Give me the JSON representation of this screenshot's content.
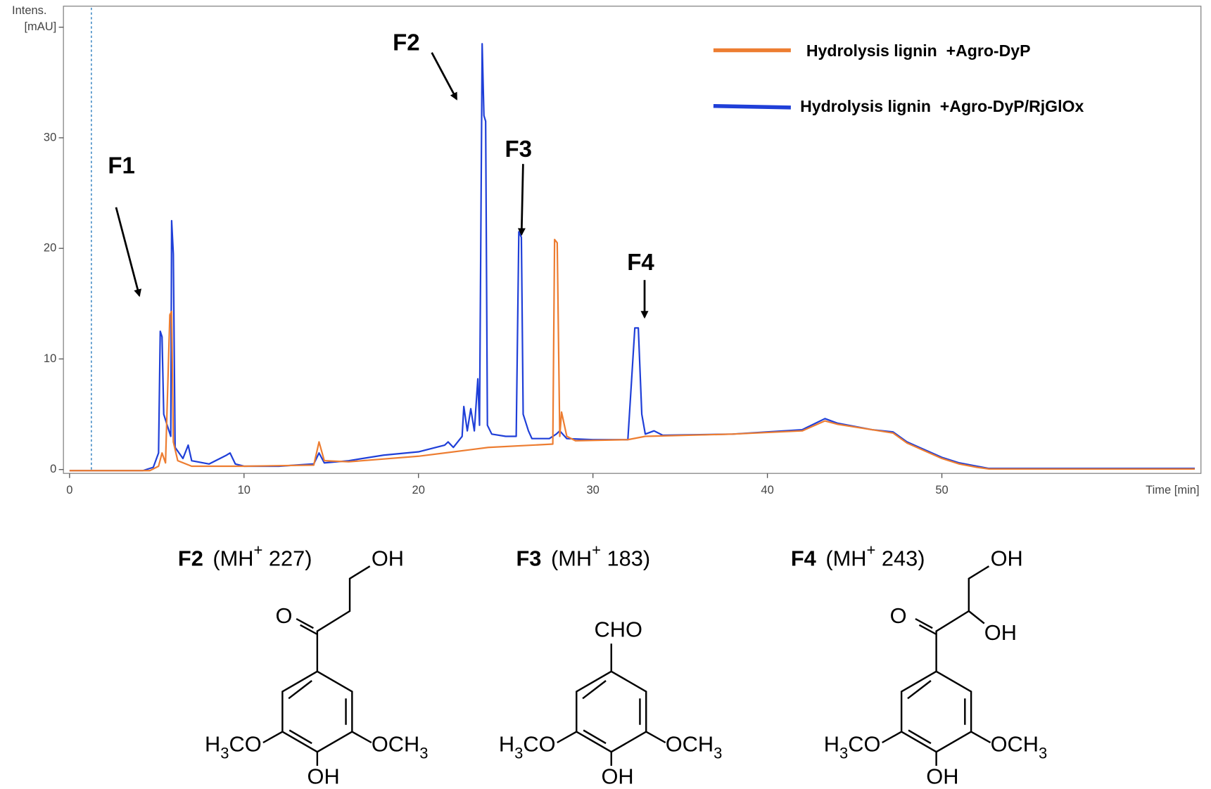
{
  "chart_data": {
    "type": "line",
    "x_label": "Time [min]",
    "y_label": "Intens.",
    "xlim": [
      -0.35,
      64.85
    ],
    "ylim": [
      -0.35,
      41.9
    ],
    "xticks": [
      0,
      10,
      20,
      30,
      40,
      50
    ],
    "yticks": [
      0,
      10,
      20,
      30,
      {
        "value": 40,
        "label": "[mAU]"
      }
    ],
    "vline": {
      "x": 1.25,
      "color": "#4a90c8"
    },
    "legend": "top right",
    "annotations": [
      {
        "text": "F1"
      },
      {
        "text": "F2"
      },
      {
        "text": "F3"
      },
      {
        "text": "F4"
      }
    ],
    "series": [
      {
        "name": "Hydrolysis lignin  +Agro-DyP",
        "color": "#ed7d31",
        "x": [
          0,
          4.6,
          5.1,
          5.3,
          5.5,
          5.75,
          5.85,
          5.95,
          6.2,
          7,
          10,
          14,
          14.3,
          14.6,
          16,
          20,
          23,
          24,
          27.7,
          27.8,
          27.95,
          28.1,
          28.2,
          28.5,
          29,
          32,
          33,
          38,
          42,
          43.3,
          44,
          46,
          47.2,
          48,
          49,
          50,
          51,
          52,
          52.7,
          64.5
        ],
        "values": [
          -0.1,
          -0.1,
          0.3,
          1.5,
          0.6,
          14,
          14.3,
          2.5,
          0.8,
          0.3,
          0.3,
          0.4,
          2.5,
          0.8,
          0.7,
          1.2,
          1.8,
          2,
          2.3,
          20.8,
          20.5,
          3,
          5.2,
          3,
          2.6,
          2.7,
          3,
          3.2,
          3.5,
          4.4,
          4.1,
          3.6,
          3.3,
          2.4,
          1.7,
          1,
          0.5,
          0.2,
          0.05,
          0.05
        ]
      },
      {
        "name": "Hydrolysis lignin  +Agro-DyP/RjGlOx",
        "color": "#1f3fd8",
        "x": [
          0,
          4.2,
          4.8,
          5.1,
          5.2,
          5.3,
          5.4,
          5.6,
          5.8,
          5.85,
          5.95,
          6.05,
          6.5,
          6.8,
          7,
          8,
          9,
          9.2,
          9.5,
          10,
          12,
          14,
          14.3,
          14.6,
          16,
          18,
          20,
          21.5,
          21.7,
          22,
          22.5,
          22.6,
          22.8,
          23,
          23.2,
          23.4,
          23.5,
          23.65,
          23.75,
          23.85,
          23.95,
          24.2,
          25,
          25.6,
          25.75,
          25.9,
          26,
          26.3,
          26.5,
          27.5,
          27.9,
          28.1,
          28.5,
          30,
          32,
          32.4,
          32.6,
          32.8,
          33,
          33.5,
          34,
          38,
          42,
          43.3,
          44,
          46,
          47.2,
          48,
          49,
          50,
          51,
          52,
          52.7,
          64.5
        ],
        "values": [
          -0.1,
          -0.1,
          0.2,
          1.5,
          12.5,
          12,
          5,
          4,
          3,
          22.5,
          19.5,
          2,
          1,
          2.2,
          0.8,
          0.5,
          1.3,
          1.5,
          0.5,
          0.3,
          0.3,
          0.5,
          1.5,
          0.6,
          0.8,
          1.3,
          1.6,
          2.2,
          2.5,
          2,
          3,
          5.7,
          3.5,
          5.5,
          3.5,
          8.2,
          4,
          38.5,
          32,
          31.5,
          4,
          3.2,
          3,
          3,
          21.5,
          21,
          5,
          3.5,
          2.8,
          2.8,
          3.2,
          3.5,
          2.8,
          2.7,
          2.7,
          12.8,
          12.8,
          5,
          3.2,
          3.5,
          3.1,
          3.2,
          3.6,
          4.6,
          4.2,
          3.6,
          3.4,
          2.5,
          1.8,
          1.1,
          0.6,
          0.3,
          0.1,
          0.1
        ]
      }
    ]
  },
  "structures": [
    {
      "name": "F2",
      "ion": "(MH+ 227)",
      "atoms": [
        "OH",
        "O",
        "H3CO",
        "OCH3",
        "OH"
      ]
    },
    {
      "name": "F3",
      "ion": "(MH+ 183)",
      "atoms": [
        "CHO",
        "H3CO",
        "OCH3",
        "OH"
      ]
    },
    {
      "name": "F4",
      "ion": "(MH+ 243)",
      "atoms": [
        "OH",
        "O",
        "OH",
        "H3CO",
        "OCH3",
        "OH"
      ]
    }
  ]
}
